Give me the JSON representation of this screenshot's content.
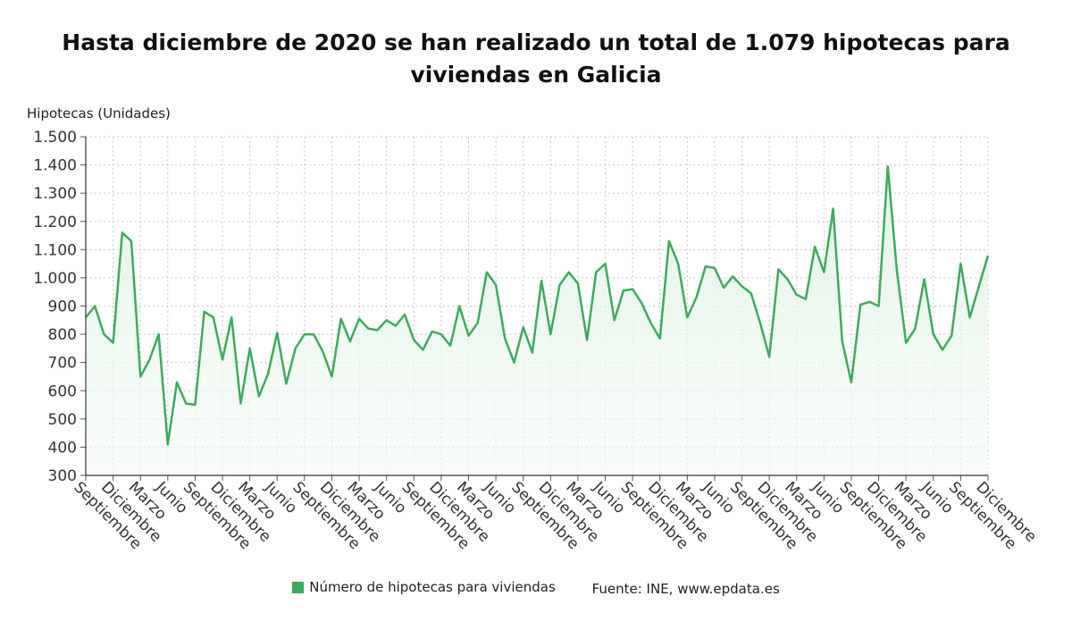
{
  "title": "Hasta diciembre de 2020 se han realizado un total de 1.079 hipotecas para viviendas en Galicia",
  "y_axis_label": "Hipotecas (Unidades)",
  "legend": {
    "series_label": "Número de hipotecas para viviendas",
    "source_label": "Fuente: INE, www.epdata.es"
  },
  "colors": {
    "line": "#3cab5e",
    "fill_top": "#dff1e3",
    "grid": "#c8c8c8"
  },
  "chart_data": {
    "type": "area",
    "ylim": [
      300,
      1500
    ],
    "y_ticks": [
      300,
      400,
      500,
      600,
      700,
      800,
      900,
      1000,
      1100,
      1200,
      1300,
      1400,
      1500
    ],
    "y_tick_labels": [
      "300",
      "400",
      "500",
      "600",
      "700",
      "800",
      "900",
      "1.000",
      "1.100",
      "1.200",
      "1.300",
      "1.400",
      "1.500"
    ],
    "x_tick_labels": [
      "Septiembre",
      "Diciembre",
      "Marzo",
      "Junio",
      "Septiembre",
      "Diciembre",
      "Marzo",
      "Junio",
      "Septiembre",
      "Diciembre",
      "Marzo",
      "Junio",
      "Septiembre",
      "Diciembre",
      "Marzo",
      "Junio",
      "Septiembre",
      "Diciembre",
      "Marzo",
      "Junio",
      "Septiembre",
      "Diciembre",
      "Marzo",
      "Junio",
      "Septiembre",
      "Diciembre",
      "Marzo",
      "Junio",
      "Septiembre",
      "Diciembre",
      "Marzo",
      "Junio",
      "Septiembre",
      "Diciembre"
    ],
    "series": [
      {
        "name": "Número de hipotecas para viviendas",
        "values": [
          860,
          900,
          800,
          770,
          1160,
          1130,
          650,
          710,
          800,
          410,
          630,
          555,
          550,
          880,
          860,
          710,
          860,
          555,
          750,
          580,
          660,
          805,
          625,
          750,
          800,
          800,
          740,
          650,
          855,
          775,
          855,
          820,
          815,
          850,
          830,
          870,
          780,
          745,
          810,
          800,
          760,
          900,
          795,
          840,
          1020,
          975,
          785,
          700,
          825,
          735,
          990,
          800,
          975,
          1020,
          980,
          780,
          1020,
          1050,
          850,
          955,
          960,
          910,
          840,
          785,
          1130,
          1050,
          860,
          930,
          1040,
          1035,
          965,
          1005,
          970,
          945,
          840,
          720,
          1030,
          995,
          940,
          925,
          1110,
          1020,
          1245,
          775,
          630,
          905,
          915,
          900,
          1395,
          1025,
          770,
          820,
          995,
          800,
          745,
          795,
          1050,
          860,
          970,
          1079
        ]
      }
    ]
  }
}
